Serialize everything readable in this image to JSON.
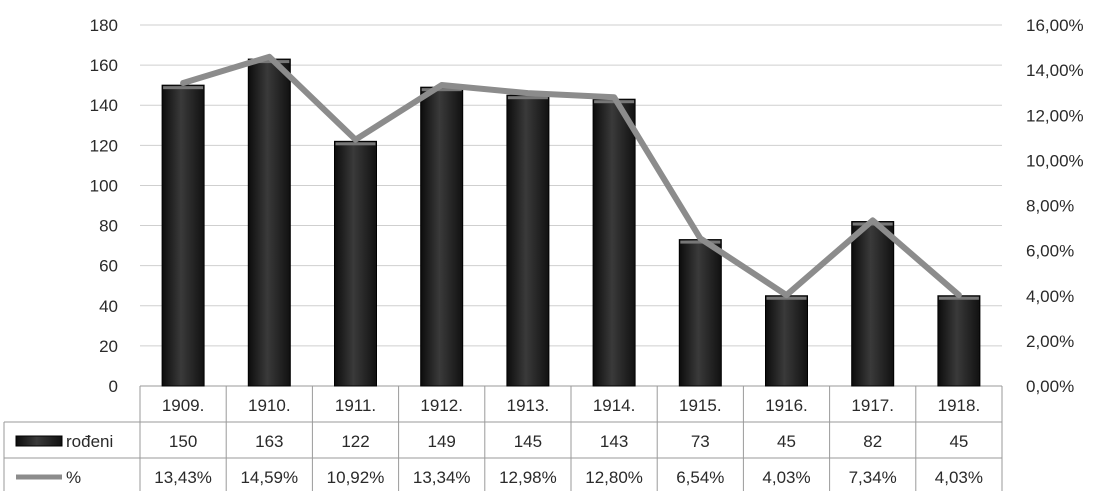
{
  "chart_data": {
    "type": "bar",
    "categories": [
      "1909.",
      "1910.",
      "1911.",
      "1912.",
      "1913.",
      "1914.",
      "1915.",
      "1916.",
      "1917.",
      "1918."
    ],
    "series": [
      {
        "name": "rođeni",
        "kind": "bar",
        "axis": "left",
        "values": [
          150,
          163,
          122,
          149,
          145,
          143,
          73,
          45,
          82,
          45
        ],
        "labels": [
          "150",
          "163",
          "122",
          "149",
          "145",
          "143",
          "73",
          "45",
          "82",
          "45"
        ],
        "color": "#1e1e1e"
      },
      {
        "name": "%",
        "kind": "line",
        "axis": "right",
        "values": [
          13.43,
          14.59,
          10.92,
          13.34,
          12.98,
          12.8,
          6.54,
          4.03,
          7.34,
          4.03
        ],
        "labels": [
          "13,43%",
          "14,59%",
          "10,92%",
          "13,34%",
          "12,98%",
          "12,80%",
          "6,54%",
          "4,03%",
          "7,34%",
          "4,03%"
        ],
        "color": "#8c8c8c"
      }
    ],
    "y_left": {
      "range": [
        0,
        180
      ],
      "ticks": [
        "0",
        "20",
        "40",
        "60",
        "80",
        "100",
        "120",
        "140",
        "160",
        "180"
      ]
    },
    "y_right": {
      "range": [
        0,
        16
      ],
      "ticks": [
        "0,00%",
        "2,00%",
        "4,00%",
        "6,00%",
        "8,00%",
        "10,00%",
        "12,00%",
        "14,00%",
        "16,00%"
      ]
    },
    "grid": true,
    "legend": "data-table",
    "title": "",
    "xlabel": "",
    "ylabel": ""
  }
}
